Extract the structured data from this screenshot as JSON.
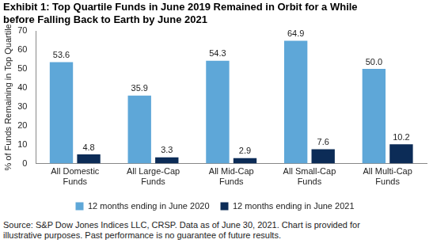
{
  "chart_data": {
    "type": "bar",
    "title": [
      "Exhibit 1: Top Quartile Funds in June 2019 Remained in Orbit for a While",
      "before Falling Back to Earth by June 2021"
    ],
    "y_label": "% of Funds Remaining in Top Quartile",
    "categories": [
      [
        "All Domestic",
        "Funds"
      ],
      [
        "All Large-Cap",
        "Funds"
      ],
      [
        "All Mid-Cap",
        "Funds"
      ],
      [
        "All Small-Cap",
        "Funds"
      ],
      [
        "All Multi-Cap",
        "Funds"
      ]
    ],
    "series": [
      {
        "name": "12 months ending in June 2020",
        "color": "#5ea7d8",
        "values": [
          53.6,
          35.9,
          54.3,
          64.9,
          50.0
        ],
        "value_labels": [
          "53.6",
          "35.9",
          "54.3",
          "64.9",
          "50.0"
        ]
      },
      {
        "name": "12 months ending in June 2021",
        "color": "#0c2c57",
        "values": [
          4.8,
          3.3,
          2.9,
          7.6,
          10.2
        ],
        "value_labels": [
          "4.8",
          "3.3",
          "2.9",
          "7.6",
          "10.2"
        ]
      }
    ],
    "ylim": [
      0,
      70
    ],
    "yticks": [
      0,
      10,
      20,
      30,
      40,
      50,
      60,
      70
    ],
    "grid": false,
    "legend": "bottom",
    "data_labels": true,
    "note": [
      "Source: S&P Dow Jones Indices LLC, CRSP.  Data as of June 30, 2021.  Chart is provided for",
      "illustrative purposes.  Past performance is no guarantee of future results."
    ]
  }
}
